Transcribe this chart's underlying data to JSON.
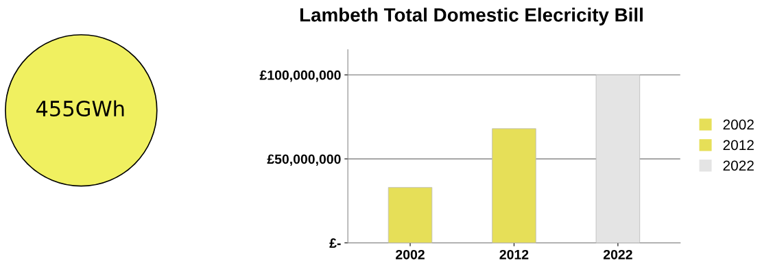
{
  "chart_data": {
    "type": "bar",
    "title": "Lambeth Total Domestic Elecricity Bill",
    "categories": [
      "2002",
      "2012",
      "2022"
    ],
    "series": [
      {
        "name": "2002",
        "color": "#e6df58",
        "values": [
          33000000,
          null,
          null
        ]
      },
      {
        "name": "2012",
        "color": "#e6df58",
        "values": [
          null,
          68000000,
          null
        ]
      },
      {
        "name": "2022",
        "color": "#e4e4e4",
        "values": [
          null,
          null,
          100000000
        ]
      }
    ],
    "ylim": [
      0,
      115000000
    ],
    "yticks": [
      {
        "value": 0,
        "label": "£-"
      },
      {
        "value": 50000000,
        "label": "£50,000,000"
      },
      {
        "value": 100000000,
        "label": "£100,000,000"
      }
    ],
    "grid": "y",
    "legend": "right",
    "annotations": [
      "455GWh"
    ]
  }
}
